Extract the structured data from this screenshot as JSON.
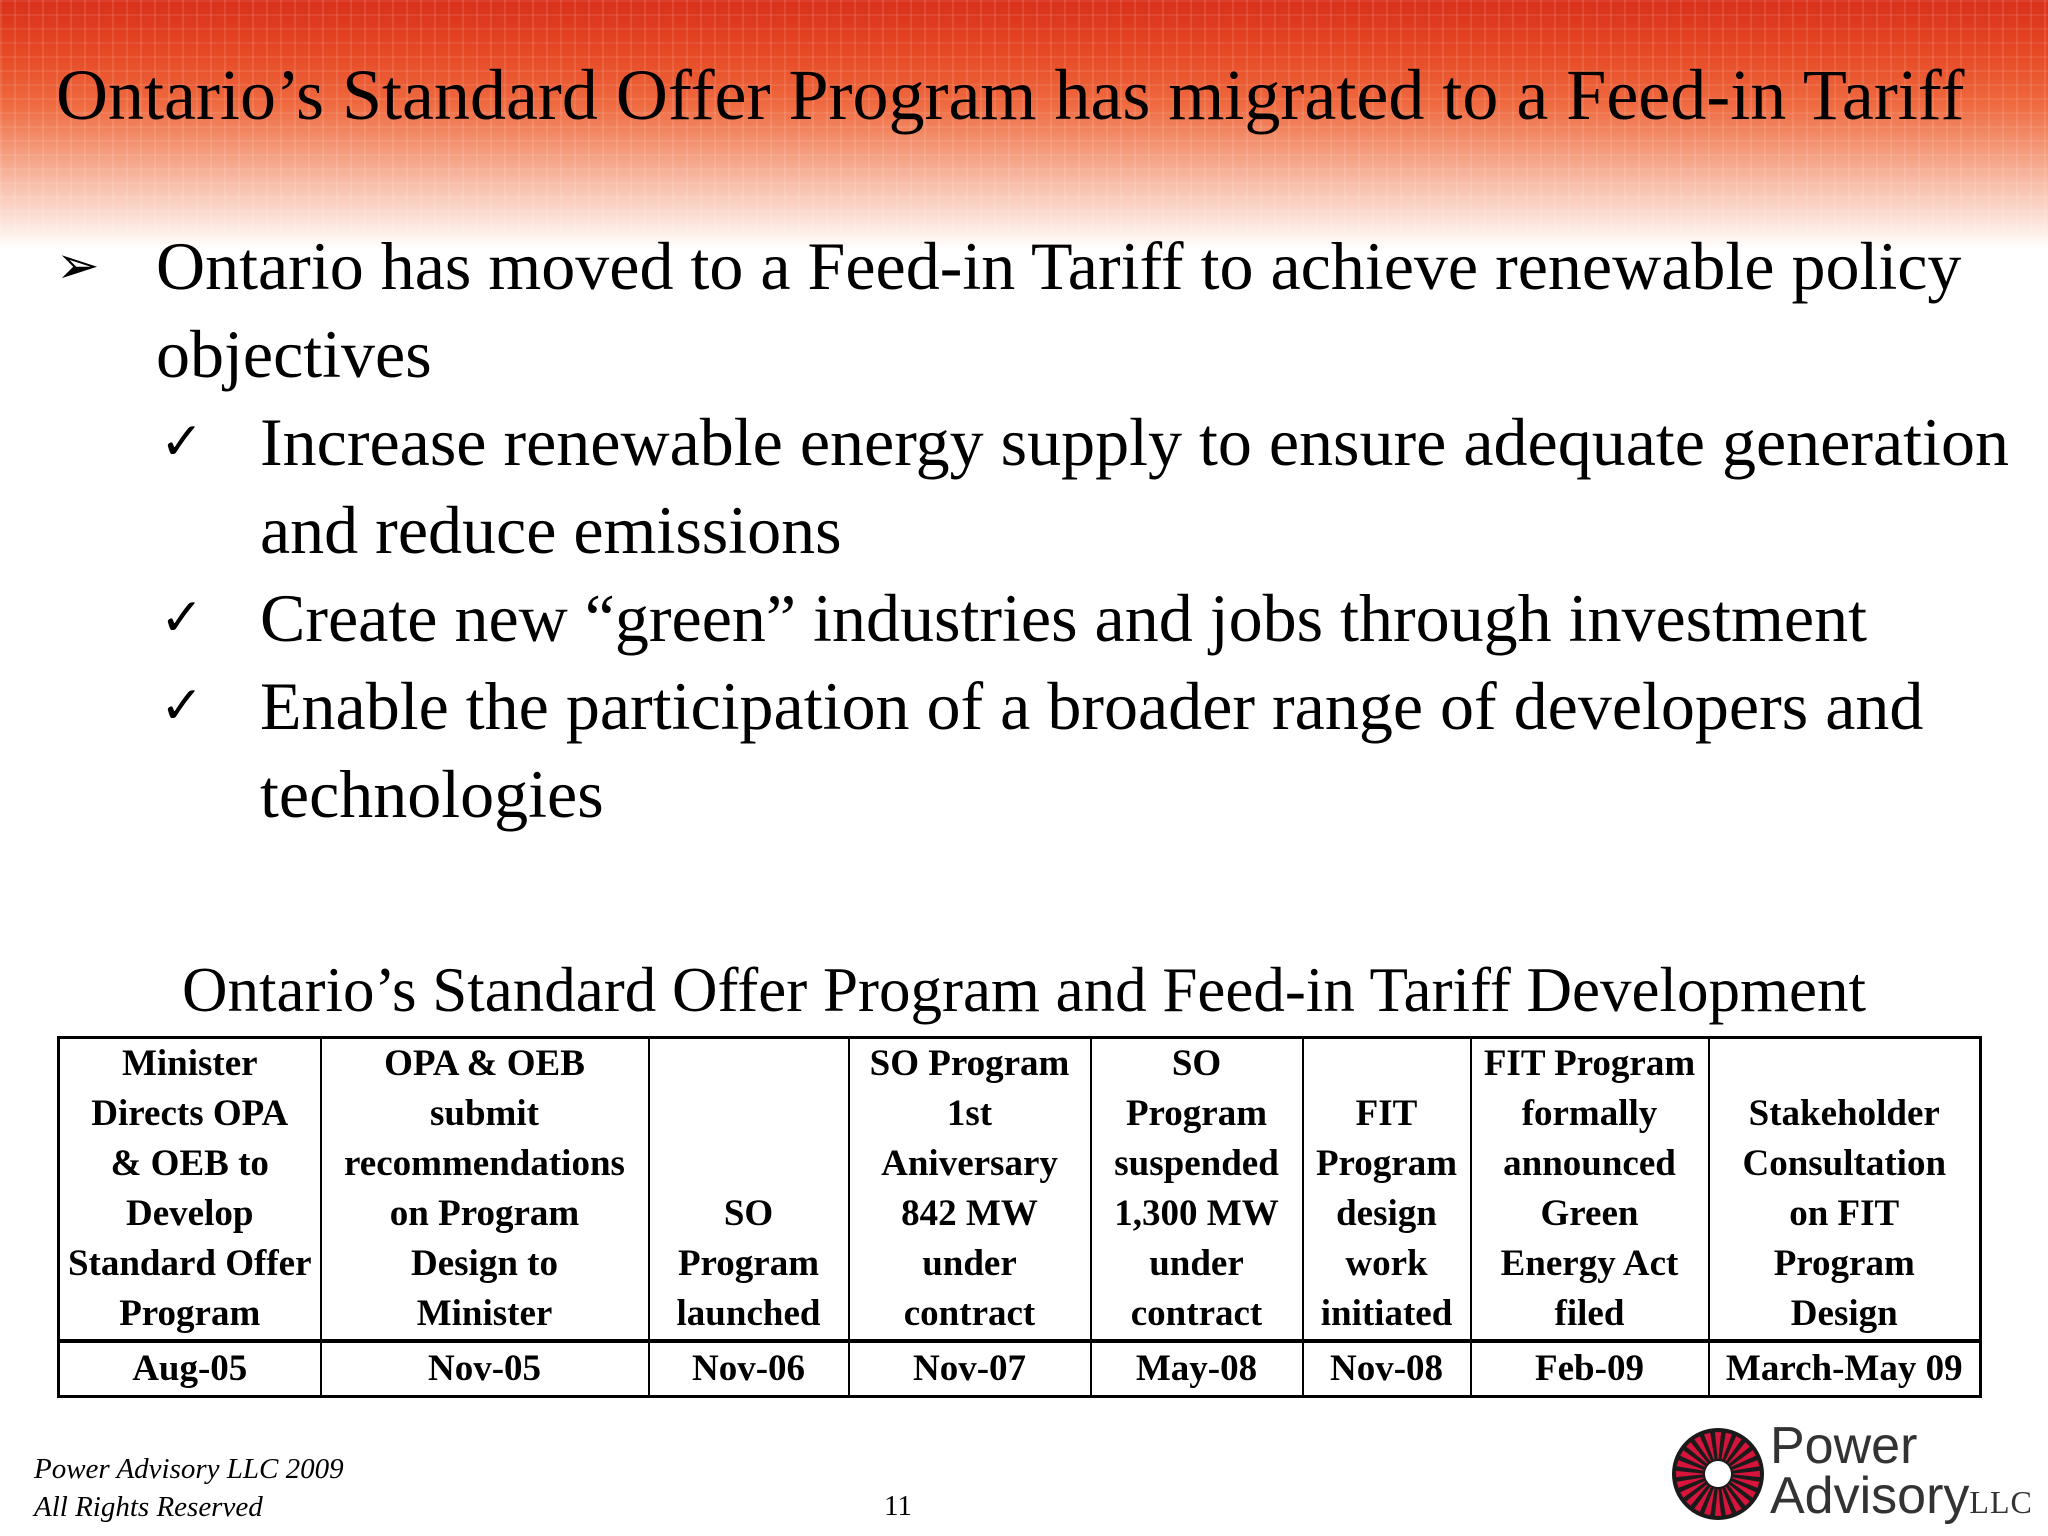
{
  "slide": {
    "title": "Ontario’s Standard Offer Program has migrated to a Feed-in Tariff",
    "main_bullet": "Ontario has moved to a Feed-in Tariff to achieve renewable policy objectives",
    "sub_bullets": [
      "Increase renewable energy supply to ensure adequate generation and reduce emissions",
      "Create new “green” industries and jobs through investment",
      "Enable the participation of a broader range of developers and technologies"
    ]
  },
  "table": {
    "title": "Ontario’s Standard Offer Program and Feed-in Tariff Development",
    "events": [
      {
        "lines": [
          "Minister",
          "Directs OPA",
          "& OEB to",
          "Develop",
          "Standard Offer",
          "Program"
        ],
        "date": "Aug-05"
      },
      {
        "lines": [
          "OPA & OEB",
          "submit",
          "recommendations",
          "on Program",
          "Design to",
          "Minister"
        ],
        "date": "Nov-05"
      },
      {
        "lines": [
          "SO",
          "Program",
          "launched"
        ],
        "date": "Nov-06"
      },
      {
        "lines": [
          "SO Program",
          "1st",
          "Aniversary",
          "842 MW",
          "under",
          "contract"
        ],
        "date": "Nov-07"
      },
      {
        "lines": [
          "SO",
          "Program",
          "suspended",
          "1,300 MW",
          "under",
          "contract"
        ],
        "date": "May-08"
      },
      {
        "lines": [
          "FIT",
          "Program",
          "design",
          "work",
          "initiated"
        ],
        "date": "Nov-08"
      },
      {
        "lines": [
          "FIT Program",
          "formally",
          "announced",
          "Green",
          "Energy Act",
          "filed"
        ],
        "date": "Feb-09"
      },
      {
        "lines": [
          "Stakeholder",
          "Consultation",
          "on FIT",
          "Program",
          "Design"
        ],
        "date": "March-May 09"
      }
    ]
  },
  "footer": {
    "line1": "Power Advisory LLC 2009",
    "line2": "All Rights Reserved",
    "page_number": "11"
  },
  "logo": {
    "word1": "Power",
    "word2": "Advisory",
    "suffix": "LLC",
    "accent_color": "#d7143c"
  },
  "colors": {
    "header_red": "#d9301a",
    "text": "#000000"
  }
}
